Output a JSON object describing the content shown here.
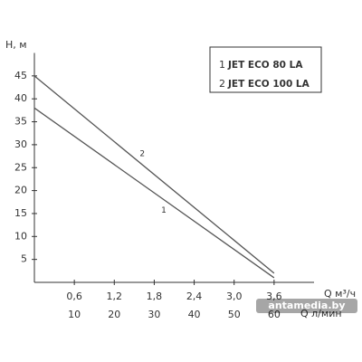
{
  "chart_data": {
    "type": "line",
    "y_label": "H, м",
    "x_label": "Q м³/ч",
    "x2_label": "Q л/мин",
    "x": [
      0,
      3.6
    ],
    "series": [
      {
        "label": "1",
        "name": "JET ECO 80 LA",
        "color": "#555555",
        "values": [
          38,
          1
        ]
      },
      {
        "label": "2",
        "name": "JET ECO 100 LA",
        "color": "#555555",
        "values": [
          45,
          2
        ]
      }
    ],
    "xlim": [
      0,
      4.2
    ],
    "xticks": [
      {
        "value": 0.6,
        "label": "0,6"
      },
      {
        "value": 1.2,
        "label": "1,2"
      },
      {
        "value": 1.8,
        "label": "1,8"
      },
      {
        "value": 2.4,
        "label": "2,4"
      },
      {
        "value": 3.0,
        "label": "3,0"
      },
      {
        "value": 3.6,
        "label": "3,6"
      }
    ],
    "x2lim": [
      0,
      70
    ],
    "x2ticks": [
      10,
      20,
      30,
      40,
      50,
      60
    ],
    "ylim": [
      0,
      50
    ],
    "yticks": [
      5,
      10,
      15,
      20,
      25,
      30,
      35,
      40,
      45
    ],
    "grid": false,
    "legend": "top-right",
    "watermark": "antamedia.by"
  }
}
